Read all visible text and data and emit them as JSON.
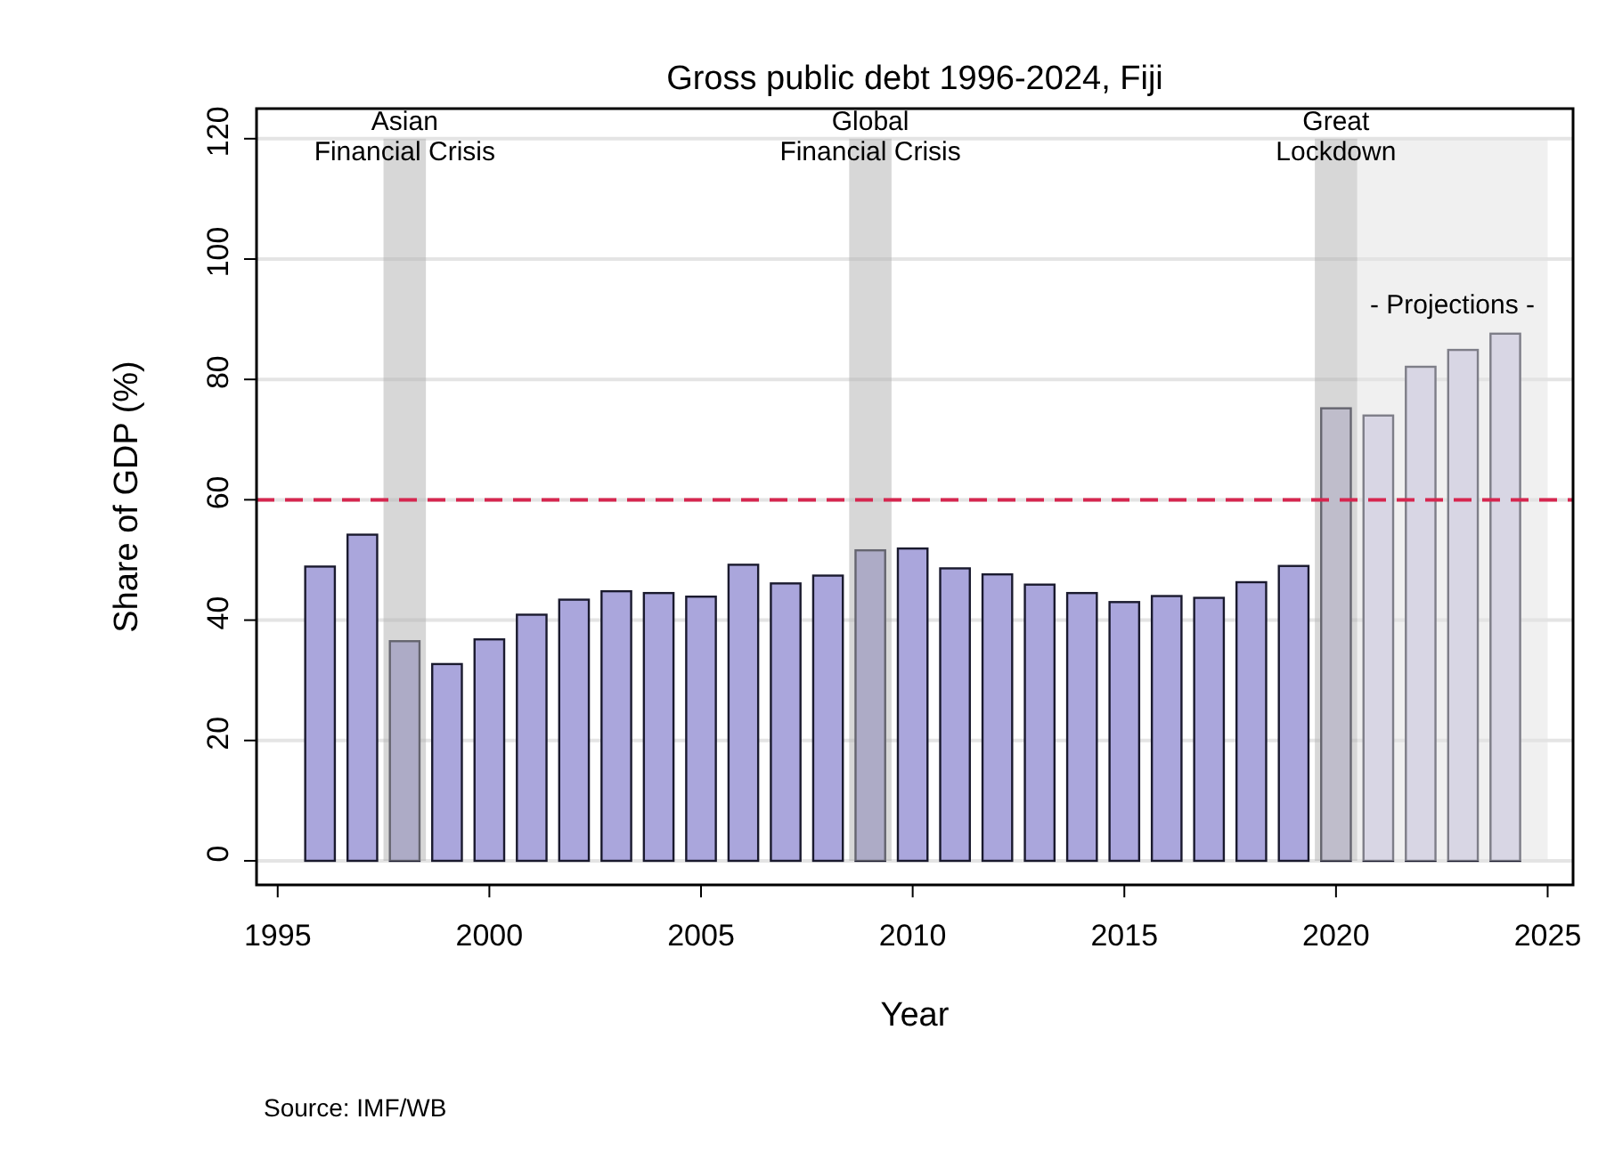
{
  "chart_data": {
    "type": "bar",
    "title": "Gross public debt 1996-2024, Fiji",
    "xlabel": "Year",
    "ylabel": "Share of GDP (%)",
    "x": [
      1996,
      1997,
      1998,
      1999,
      2000,
      2001,
      2002,
      2003,
      2004,
      2005,
      2006,
      2007,
      2008,
      2009,
      2010,
      2011,
      2012,
      2013,
      2014,
      2015,
      2016,
      2017,
      2018,
      2019,
      2020,
      2021,
      2022,
      2023,
      2024
    ],
    "values": [
      48.9,
      54.2,
      36.5,
      32.7,
      36.8,
      40.9,
      43.4,
      44.8,
      44.5,
      43.9,
      49.2,
      46.1,
      47.4,
      51.6,
      51.9,
      48.6,
      47.6,
      45.9,
      44.5,
      43.0,
      44.0,
      43.7,
      46.3,
      49.0,
      75.2,
      74.0,
      82.1,
      84.9,
      87.6
    ],
    "colors": [
      "#aaa6dc",
      "#aaa6dc",
      "#aaa6dc",
      "#aaa6dc",
      "#aaa6dc",
      "#aaa6dc",
      "#aaa6dc",
      "#aaa6dc",
      "#aaa6dc",
      "#aaa6dc",
      "#aaa6dc",
      "#aaa6dc",
      "#aaa6dc",
      "#aaa6dc",
      "#aaa6dc",
      "#aaa6dc",
      "#aaa6dc",
      "#aaa6dc",
      "#aaa6dc",
      "#aaa6dc",
      "#aaa6dc",
      "#aaa6dc",
      "#aaa6dc",
      "#aaa6dc",
      "#cfcbe7",
      "#cfcbe7",
      "#cfcbe7",
      "#cfcbe7",
      "#cfcbe7"
    ],
    "xlim": [
      1994.5,
      2025.6
    ],
    "xticks": [
      1995,
      2000,
      2005,
      2010,
      2015,
      2020,
      2025
    ],
    "ylim": [
      -4,
      125
    ],
    "yticks": [
      0,
      20,
      40,
      60,
      80,
      100,
      120
    ],
    "grid": "y",
    "ref_lines": [
      {
        "axis": "y",
        "value": 60,
        "color": "#d6264f",
        "line_style": "dashed"
      }
    ],
    "bands": [
      {
        "axis": "x",
        "from": 1997.5,
        "to": 1998.5,
        "label": "Asian\nFinancial Crisis",
        "color": "#b0b0b0"
      },
      {
        "axis": "x",
        "from": 2008.5,
        "to": 2009.5,
        "label": "Global\nFinancial Crisis",
        "color": "#b0b0b0"
      },
      {
        "axis": "x",
        "from": 2020.5,
        "to": 2025,
        "label": "- Projections -",
        "color": "#e2e2e2"
      },
      {
        "axis": "x",
        "from": 2019.5,
        "to": 2020.5,
        "label": "Great\nLockdown",
        "color": "#b0b0b0"
      }
    ],
    "annotations": [
      "Source: IMF/WB"
    ]
  }
}
